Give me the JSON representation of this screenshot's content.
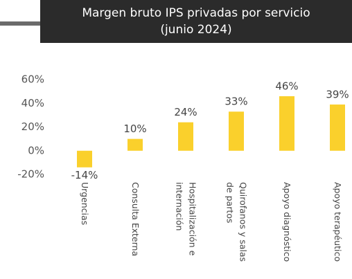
{
  "chart_data": {
    "type": "bar",
    "title": "Margen bruto IPS privadas por servicio\n(junio 2024)",
    "categories": [
      "Urgencias",
      "Consulta Externa",
      "Hospitalización e\ninternación",
      "Quirofanos y salas\nde partos",
      "Apoyo diagnóstico",
      "Apoyo terapéutico"
    ],
    "values": [
      -14,
      10,
      24,
      33,
      46,
      39
    ],
    "value_labels": [
      "-14%",
      "10%",
      "24%",
      "33%",
      "46%",
      "39%"
    ],
    "color": "#fad02c",
    "ylim": [
      -20,
      60
    ],
    "yticks": [
      {
        "value": -20,
        "label": "-20%"
      },
      {
        "value": 0,
        "label": "0%"
      },
      {
        "value": 20,
        "label": "20%"
      },
      {
        "value": 40,
        "label": "40%"
      },
      {
        "value": 60,
        "label": "60%"
      }
    ],
    "grid": false
  }
}
